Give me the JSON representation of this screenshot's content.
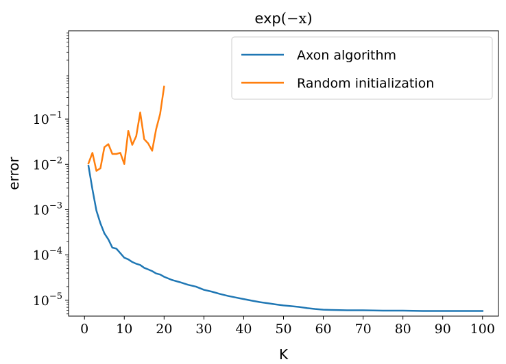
{
  "chart_data": {
    "type": "line",
    "title_fn": "exp",
    "title_arg": "(−x)",
    "xlabel": "K",
    "ylabel": "error",
    "xlim": [
      -4,
      104
    ],
    "ylim_log10": [
      -5.35,
      0.95
    ],
    "log_y": true,
    "grid": false,
    "legend_position": "top-right",
    "xticks": [
      0,
      10,
      20,
      30,
      40,
      50,
      60,
      70,
      80,
      90,
      100
    ],
    "yticks": [
      {
        "exp": -5,
        "base": "10",
        "sup": "−5"
      },
      {
        "exp": -4,
        "base": "10",
        "sup": "−4"
      },
      {
        "exp": -3,
        "base": "10",
        "sup": "−3"
      },
      {
        "exp": -2,
        "base": "10",
        "sup": "−2"
      },
      {
        "exp": -1,
        "base": "10",
        "sup": "−1"
      }
    ],
    "series": [
      {
        "name": "Axon algorithm",
        "color": "#1f77b4",
        "x": [
          1,
          2,
          3,
          4,
          5,
          6,
          7,
          8,
          9,
          10,
          11,
          12,
          13,
          14,
          15,
          16,
          17,
          18,
          19,
          20,
          22,
          24,
          26,
          28,
          30,
          32,
          34,
          36,
          38,
          40,
          42,
          44,
          46,
          48,
          50,
          52,
          54,
          56,
          58,
          60,
          62,
          64,
          66,
          68,
          70,
          75,
          80,
          85,
          90,
          95,
          100
        ],
        "y": [
          0.0093,
          0.0028,
          0.00095,
          0.0005,
          0.0003,
          0.00022,
          0.000145,
          0.000138,
          0.00011,
          8.7e-05,
          8e-05,
          7e-05,
          6.4e-05,
          6e-05,
          5.2e-05,
          4.8e-05,
          4.4e-05,
          3.9e-05,
          3.7e-05,
          3.3e-05,
          2.8e-05,
          2.5e-05,
          2.2e-05,
          2e-05,
          1.7e-05,
          1.55e-05,
          1.38e-05,
          1.25e-05,
          1.15e-05,
          1.06e-05,
          9.8e-06,
          9.1e-06,
          8.6e-06,
          8.1e-06,
          7.7e-06,
          7.4e-06,
          7.1e-06,
          6.7e-06,
          6.4e-06,
          6.2e-06,
          6.1e-06,
          6.05e-06,
          6e-06,
          6e-06,
          6e-06,
          5.9e-06,
          5.9e-06,
          5.8e-06,
          5.8e-06,
          5.8e-06,
          5.8e-06
        ]
      },
      {
        "name": "Random initialization",
        "color": "#ff7f0e",
        "x": [
          1,
          2,
          3,
          4,
          5,
          6,
          7,
          8,
          9,
          10,
          11,
          12,
          13,
          14,
          15,
          16,
          17,
          18,
          19,
          20
        ],
        "y": [
          0.0105,
          0.018,
          0.0072,
          0.0082,
          0.024,
          0.028,
          0.017,
          0.017,
          0.018,
          0.0102,
          0.055,
          0.027,
          0.042,
          0.14,
          0.036,
          0.029,
          0.02,
          0.06,
          0.13,
          0.52
        ]
      }
    ]
  }
}
